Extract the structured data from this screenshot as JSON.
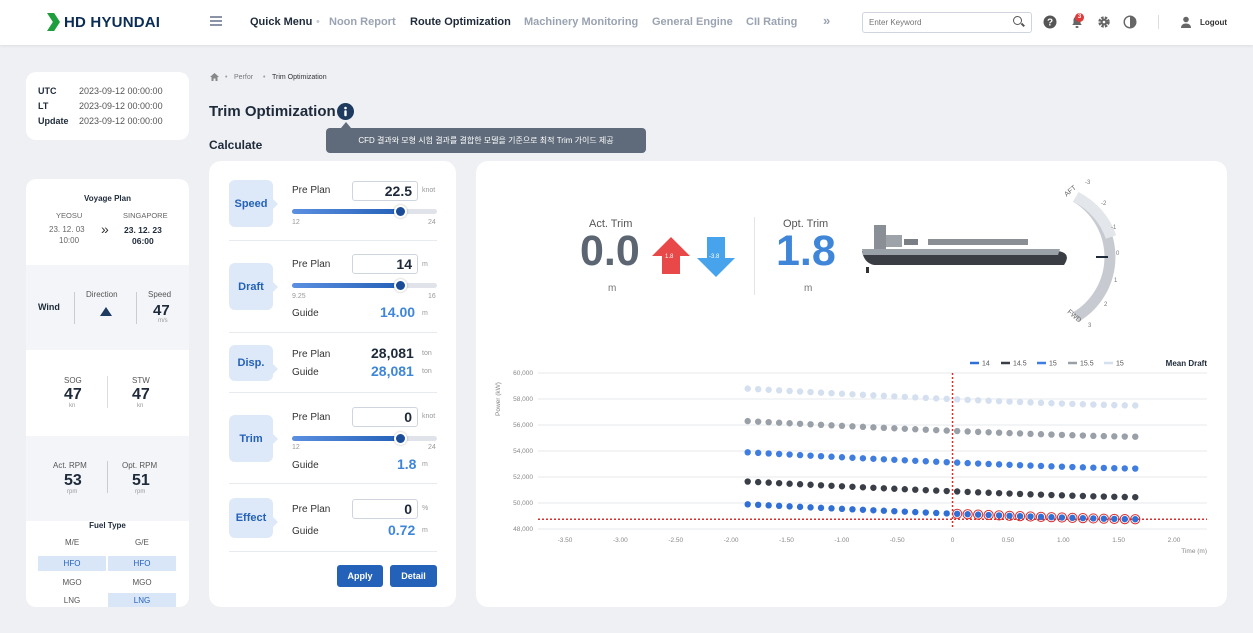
{
  "brand": "HD HYUNDAI",
  "nav": {
    "quick": "Quick Menu",
    "noon": "Noon Report",
    "route": "Route Optimization",
    "machinery": "Machinery Monitoring",
    "engine": "General Engine",
    "cii": "CII Rating",
    "more": "»"
  },
  "search_placeholder": "Enter Keyword",
  "notif_count": "3",
  "logout": "Logout",
  "time": {
    "utc_label": "UTC",
    "utc": "2023-09-12 00:00:00",
    "lt_label": "LT",
    "lt": "2023-09-12 00:00:00",
    "upd_label": "Update",
    "upd": "2023-09-12 00:00:00"
  },
  "voyage": {
    "title": "Voyage Plan",
    "from": "YEOSU",
    "from_date": "23. 12. 03",
    "from_time": "10:00",
    "to": "SINGAPORE",
    "to_date": "23. 12. 23",
    "to_time": "06:00",
    "arrow": "»"
  },
  "wind": {
    "label": "Wind",
    "dir_label": "Direction",
    "speed_label": "Speed",
    "speed": "47",
    "speed_unit": "m/s"
  },
  "sog": {
    "label": "SOG",
    "value": "47",
    "unit": "kn"
  },
  "stw": {
    "label": "STW",
    "value": "47",
    "unit": "kn"
  },
  "rpm": {
    "act_label": "Act. RPM",
    "act": "53",
    "opt_label": "Opt. RPM",
    "opt": "51",
    "unit": "rpm"
  },
  "fuel": {
    "title": "Fuel Type",
    "me": "M/E",
    "ge": "G/E",
    "rows": [
      [
        "HFO",
        "HFO"
      ],
      [
        "MGO",
        "MGO"
      ],
      [
        "LNG",
        "LNG"
      ]
    ]
  },
  "breadcrumb": {
    "home_sep": "•",
    "l1": "Perfor",
    "l2": "Trim Optimization"
  },
  "page_title": "Trim Optimization",
  "tooltip": "CFD 결과와 모형 시험 결과를 결합한 모델을 기준으로 최적 Trim 가이드 제공",
  "calc_title": "Calculate",
  "calc": {
    "pre_plan": "Pre Plan",
    "guide": "Guide",
    "speed": {
      "label": "Speed",
      "value": "22.5",
      "unit": "knot",
      "min": "12",
      "max": "24",
      "level": 0.75
    },
    "draft": {
      "label": "Draft",
      "value": "14",
      "unit": "m",
      "min": "9.25",
      "max": "16",
      "level": 0.75,
      "guide": "14.00",
      "guide_unit": "m"
    },
    "disp": {
      "label": "Disp.",
      "value": "28,081",
      "unit": "ton",
      "guide": "28,081",
      "guide_unit": "ton"
    },
    "trim": {
      "label": "Trim",
      "value": "0",
      "unit": "knot",
      "min": "12",
      "max": "24",
      "level": 0.75,
      "guide": "1.8",
      "guide_unit": "m"
    },
    "effect": {
      "label": "Effect",
      "value": "0",
      "unit": "%",
      "guide": "0.72",
      "guide_unit": "m"
    },
    "apply": "Apply",
    "detail": "Detail"
  },
  "trim_display": {
    "act_label": "Act. Trim",
    "act": "0.0",
    "act_unit": "m",
    "up_badge": "1.8",
    "down_badge": "-3.8",
    "opt_label": "Opt. Trim",
    "opt": "1.8",
    "opt_unit": "m",
    "aft": "AFT",
    "fwd": "FWD",
    "gauge_ticks": [
      "-3",
      "-2",
      "-1",
      "0",
      "1",
      "2",
      "3"
    ]
  },
  "chart_data": {
    "type": "scatter",
    "ylabel": "Power (kW)",
    "xlabel": "Time (m)",
    "xlim": [
      -4.0,
      2.2
    ],
    "ylim": [
      48000,
      60000
    ],
    "x_ticks": [
      "-3.50",
      "-3.00",
      "-2.50",
      "-2.00",
      "-1.50",
      "-1.00",
      "-0.50",
      "0",
      "0.50",
      "1.00",
      "1.50",
      "2.00"
    ],
    "y_ticks": [
      "60,000",
      "58,000",
      "56,000",
      "54,000",
      "52,000",
      "50,000",
      "48,000"
    ],
    "legend_title": "Mean Draft",
    "series": [
      {
        "name": "14",
        "color": "#2f6fd6",
        "start": 49900,
        "end": 48750
      },
      {
        "name": "14.5",
        "color": "#3a3f47",
        "start": 51650,
        "end": 50450
      },
      {
        "name": "15",
        "color": "#3f7de0",
        "start": 53900,
        "end": 52650
      },
      {
        "name": "15.5",
        "color": "#9aa0a8",
        "start": 56300,
        "end": 55100
      },
      {
        "name": "15",
        "color": "#d4dff0",
        "start": 58800,
        "end": 57500
      }
    ],
    "x_range": [
      -1.85,
      1.65
    ],
    "ref_line_x": 0,
    "ref_line_y": 48750
  }
}
